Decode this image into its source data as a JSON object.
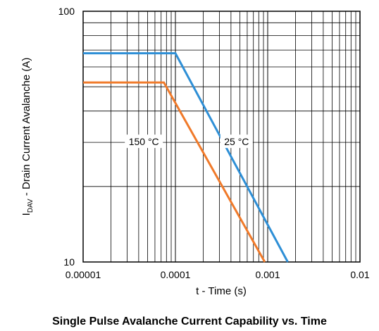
{
  "chart_data": {
    "type": "line",
    "title": "Single Pulse Avalanche Current Capability vs. Time",
    "xlabel": "t - Time (s)",
    "ylabel_main": "I",
    "ylabel_sub": "DAV",
    "ylabel_rest": " - Drain Current Avalanche (A)",
    "x_scale": "log",
    "y_scale": "log",
    "xlim": [
      1e-05,
      0.01
    ],
    "ylim": [
      10,
      100
    ],
    "x_tick_labels": [
      "0.00001",
      "0.0001",
      "0.001",
      "0.01"
    ],
    "y_tick_labels": [
      "10",
      "100"
    ],
    "grid": true,
    "series": [
      {
        "name": "25 °C",
        "color": "#2e8fd6",
        "x": [
          1e-05,
          0.0001,
          0.00165
        ],
        "y": [
          68,
          68,
          10
        ]
      },
      {
        "name": "150 °C",
        "color": "#f07a2a",
        "x": [
          1e-05,
          7.5e-05,
          0.00093
        ],
        "y": [
          52,
          52,
          10
        ]
      }
    ],
    "annotations": [
      {
        "text": "150 °C",
        "x": 4.55e-05,
        "y": 30
      },
      {
        "text": "25 °C",
        "x": 0.00046,
        "y": 30
      }
    ]
  }
}
